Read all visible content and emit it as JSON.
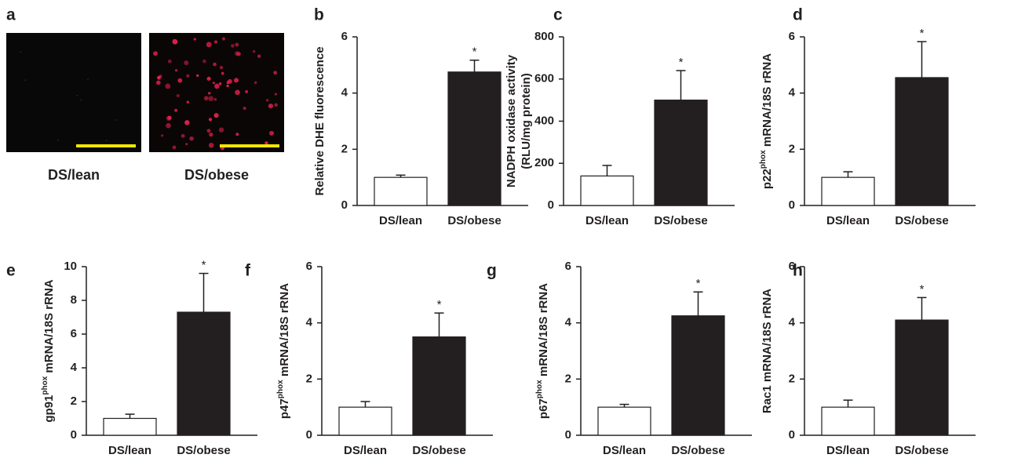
{
  "panel_a": {
    "label": "a",
    "captions": [
      "DS/lean",
      "DS/obese"
    ]
  },
  "chart_data": [
    {
      "type": "bar",
      "label": "b",
      "ylabel": [
        [
          {
            "text": "Relative DHE fluorescence"
          }
        ]
      ],
      "categories": [
        "DS/lean",
        "DS/obese"
      ],
      "values": [
        1.0,
        4.75
      ],
      "errors": [
        0.08,
        0.42
      ],
      "colors": [
        "#ffffff",
        "#231f20"
      ],
      "annotation": "*",
      "ylim": [
        0,
        6
      ],
      "yticks": [
        0,
        2,
        4,
        6
      ]
    },
    {
      "type": "bar",
      "label": "c",
      "ylabel": [
        [
          {
            "text": "NADPH oxidase activity"
          }
        ],
        [
          {
            "text": "(RLU/mg protein)"
          }
        ]
      ],
      "categories": [
        "DS/lean",
        "DS/obese"
      ],
      "values": [
        140,
        500
      ],
      "errors": [
        50,
        140
      ],
      "colors": [
        "#ffffff",
        "#231f20"
      ],
      "annotation": "*",
      "ylim": [
        0,
        800
      ],
      "yticks": [
        0,
        200,
        400,
        600,
        800
      ]
    },
    {
      "type": "bar",
      "label": "d",
      "ylabel": [
        [
          {
            "text": "p22"
          },
          {
            "text": "phox",
            "sup": true
          },
          {
            "text": " mRNA/18S rRNA"
          }
        ]
      ],
      "categories": [
        "DS/lean",
        "DS/obese"
      ],
      "values": [
        1.0,
        4.55
      ],
      "errors": [
        0.2,
        1.28
      ],
      "colors": [
        "#ffffff",
        "#231f20"
      ],
      "annotation": "*",
      "ylim": [
        0,
        6
      ],
      "yticks": [
        0,
        2,
        4,
        6
      ]
    },
    {
      "type": "bar",
      "label": "e",
      "ylabel": [
        [
          {
            "text": "gp91"
          },
          {
            "text": "phox",
            "sup": true
          },
          {
            "text": " mRNA/18S rRNA"
          }
        ]
      ],
      "categories": [
        "DS/lean",
        "DS/obese"
      ],
      "values": [
        1.0,
        7.3
      ],
      "errors": [
        0.25,
        2.3
      ],
      "colors": [
        "#ffffff",
        "#231f20"
      ],
      "annotation": "*",
      "ylim": [
        0,
        10
      ],
      "yticks": [
        0,
        2,
        4,
        6,
        8,
        10
      ]
    },
    {
      "type": "bar",
      "label": "f",
      "ylabel": [
        [
          {
            "text": "p47"
          },
          {
            "text": "phox",
            "sup": true
          },
          {
            "text": " mRNA/18S rRNA"
          }
        ]
      ],
      "categories": [
        "DS/lean",
        "DS/obese"
      ],
      "values": [
        1.0,
        3.5
      ],
      "errors": [
        0.2,
        0.85
      ],
      "colors": [
        "#ffffff",
        "#231f20"
      ],
      "annotation": "*",
      "ylim": [
        0,
        6
      ],
      "yticks": [
        0,
        2,
        4,
        6
      ]
    },
    {
      "type": "bar",
      "label": "g",
      "ylabel": [
        [
          {
            "text": "p67"
          },
          {
            "text": "phox",
            "sup": true
          },
          {
            "text": " mRNA/18S rRNA"
          }
        ]
      ],
      "categories": [
        "DS/lean",
        "DS/obese"
      ],
      "values": [
        1.0,
        4.25
      ],
      "errors": [
        0.1,
        0.85
      ],
      "colors": [
        "#ffffff",
        "#231f20"
      ],
      "annotation": "*",
      "ylim": [
        0,
        6
      ],
      "yticks": [
        0,
        2,
        4,
        6
      ]
    },
    {
      "type": "bar",
      "label": "h",
      "ylabel": [
        [
          {
            "text": "Rac1 mRNA/18S rRNA"
          }
        ]
      ],
      "categories": [
        "DS/lean",
        "DS/obese"
      ],
      "values": [
        1.0,
        4.1
      ],
      "errors": [
        0.25,
        0.8
      ],
      "colors": [
        "#ffffff",
        "#231f20"
      ],
      "annotation": "*",
      "ylim": [
        0,
        6
      ],
      "yticks": [
        0,
        2,
        4,
        6
      ]
    }
  ]
}
